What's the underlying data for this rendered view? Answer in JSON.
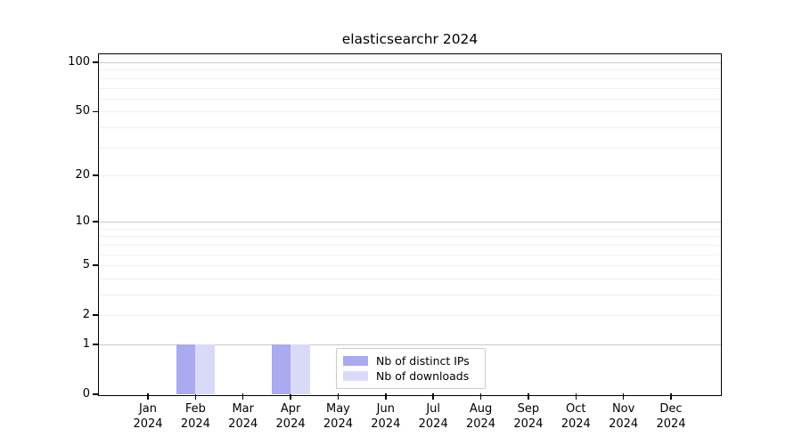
{
  "chart_data": {
    "type": "bar",
    "title": "elasticsearchr 2024",
    "x_months": [
      "Jan",
      "Feb",
      "Mar",
      "Apr",
      "May",
      "Jun",
      "Jul",
      "Aug",
      "Sep",
      "Oct",
      "Nov",
      "Dec"
    ],
    "x_year": "2024",
    "series": [
      {
        "name": "Nb of distinct IPs",
        "color": "#aaaaf0",
        "values": [
          0,
          1,
          0,
          1,
          0,
          0,
          0,
          0,
          0,
          0,
          0,
          0
        ]
      },
      {
        "name": "Nb of downloads",
        "color": "#d9d9f8",
        "values": [
          0,
          1,
          0,
          1,
          0,
          0,
          0,
          0,
          0,
          0,
          0,
          0
        ]
      }
    ],
    "y_scale": "log1p",
    "ylim": [
      0,
      112
    ],
    "y_ticks": [
      0,
      1,
      2,
      5,
      10,
      20,
      50,
      100
    ],
    "gridlines": {
      "major": [
        1,
        10,
        100
      ],
      "minor": [
        2,
        3,
        4,
        5,
        6,
        7,
        8,
        9,
        20,
        30,
        40,
        50,
        60,
        70,
        80,
        90
      ]
    },
    "colors": {
      "major_grid": "#c8c8c8",
      "minor_grid": "#f0f0f0",
      "spine": "#000000",
      "text": "#000000"
    },
    "legend_position": "inside lower-center"
  }
}
